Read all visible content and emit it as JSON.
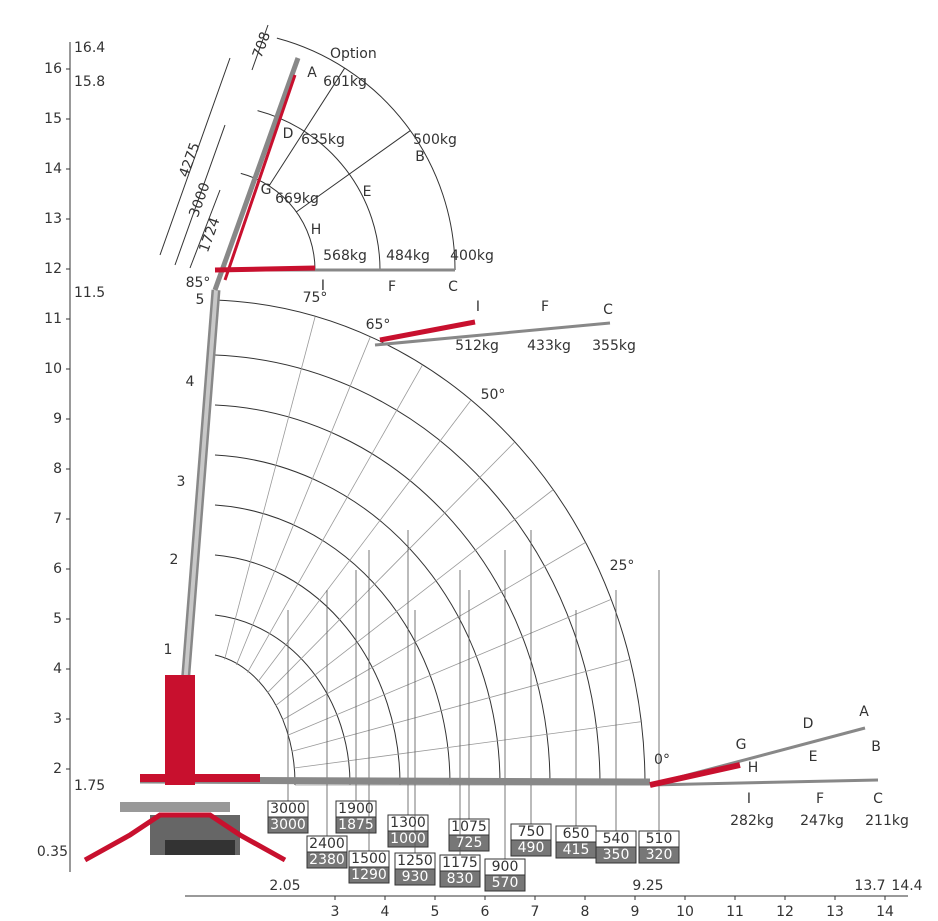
{
  "y_axis": {
    "ticks": [
      "2",
      "3",
      "4",
      "5",
      "6",
      "7",
      "8",
      "9",
      "10",
      "11",
      "12",
      "13",
      "14",
      "15",
      "16"
    ],
    "marks": [
      "16.4",
      "15.8",
      "11.5",
      "1.75",
      "0.35"
    ]
  },
  "x_axis": {
    "ticks": [
      "3",
      "4",
      "5",
      "6",
      "7",
      "8",
      "9",
      "10",
      "11",
      "12",
      "13",
      "14"
    ],
    "marks": [
      "2.05",
      "9.25",
      "13.7",
      "14.4"
    ]
  },
  "boom_sections": [
    "1",
    "2",
    "3",
    "4",
    "5"
  ],
  "angles": [
    "85°",
    "75°",
    "65°",
    "50°",
    "25°",
    "0°"
  ],
  "option": "Option",
  "dimensions": [
    "708",
    "4275",
    "3000",
    "1724"
  ],
  "jib_top": [
    {
      "letter": "A",
      "load": "601kg"
    },
    {
      "letter": "D",
      "load": "635kg"
    },
    {
      "letter": "G",
      "load": "669kg"
    },
    {
      "letter": "B",
      "load": "500kg"
    },
    {
      "letter": "E"
    },
    {
      "letter": "H"
    },
    {
      "letter": "I",
      "load": "568kg"
    },
    {
      "letter": "F",
      "load": "484kg"
    },
    {
      "letter": "C",
      "load": "400kg"
    }
  ],
  "jib_65": [
    {
      "letter": "I",
      "load": "512kg"
    },
    {
      "letter": "F",
      "load": "433kg"
    },
    {
      "letter": "C",
      "load": "355kg"
    }
  ],
  "jib_0": [
    {
      "letter": "A"
    },
    {
      "letter": "B"
    },
    {
      "letter": "D"
    },
    {
      "letter": "E"
    },
    {
      "letter": "G"
    },
    {
      "letter": "H"
    },
    {
      "letter": "I",
      "load": "282kg"
    },
    {
      "letter": "F",
      "load": "247kg"
    },
    {
      "letter": "C",
      "load": "211kg"
    }
  ],
  "load_boxes": [
    {
      "top": "3000",
      "bottom": "3000"
    },
    {
      "top": "2400",
      "bottom": "2380"
    },
    {
      "top": "1900",
      "bottom": "1875"
    },
    {
      "top": "1500",
      "bottom": "1290"
    },
    {
      "top": "1300",
      "bottom": "1000"
    },
    {
      "top": "1250",
      "bottom": "930"
    },
    {
      "top": "1075",
      "bottom": "725"
    },
    {
      "top": "1175",
      "bottom": "830"
    },
    {
      "top": "900",
      "bottom": "570"
    },
    {
      "top": "750",
      "bottom": "490"
    },
    {
      "top": "650",
      "bottom": "415"
    },
    {
      "top": "540",
      "bottom": "350"
    },
    {
      "top": "510",
      "bottom": "320"
    }
  ]
}
